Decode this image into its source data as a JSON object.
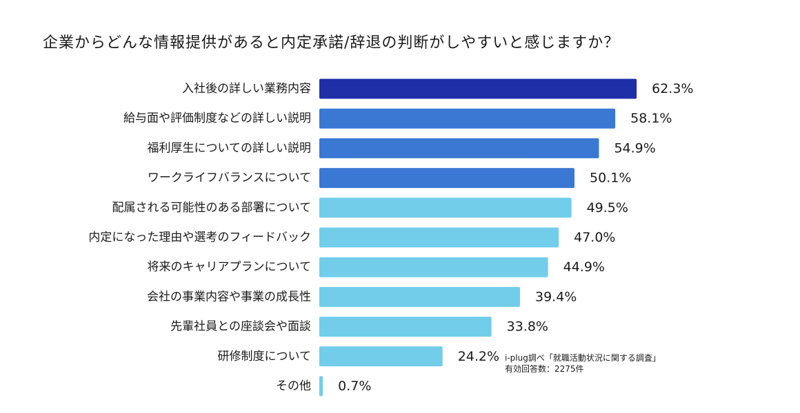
{
  "title": "企業からどんな情報提供があると内定承諾/辞退の判断がしやすいと感じますか？",
  "source": {
    "line1": "i-plug調べ「就職活動状況に関する調査」",
    "line2": "有効回答数：2275件"
  },
  "colors": {
    "top": "#1f2fa8",
    "mid": "#3a78d4",
    "light": "#72cdea"
  },
  "chart_data": {
    "type": "bar",
    "orientation": "horizontal",
    "title": "企業からどんな情報提供があると内定承諾/辞退の判断がしやすいと感じますか？",
    "unit": "%",
    "xlim": [
      0,
      70
    ],
    "categories": [
      "入社後の詳しい業務内容",
      "給与面や評価制度などの詳しい説明",
      "福利厚生についての詳しい説明",
      "ワークライフバランスについて",
      "配属される可能性のある部署について",
      "内定になった理由や選考のフィードバック",
      "将来のキャリアプランについて",
      "会社の事業内容や事業の成長性",
      "先輩社員との座談会や面談",
      "研修制度について",
      "その他"
    ],
    "values": [
      62.3,
      58.1,
      54.9,
      50.1,
      49.5,
      47.0,
      44.9,
      39.4,
      33.8,
      24.2,
      0.7
    ],
    "value_labels": [
      "62.3%",
      "58.1%",
      "54.9%",
      "50.1%",
      "49.5%",
      "47.0%",
      "44.9%",
      "39.4%",
      "33.8%",
      "24.2%",
      "0.7%"
    ],
    "color_groups": [
      "top",
      "mid",
      "mid",
      "mid",
      "light",
      "light",
      "light",
      "light",
      "light",
      "light",
      "light"
    ]
  }
}
